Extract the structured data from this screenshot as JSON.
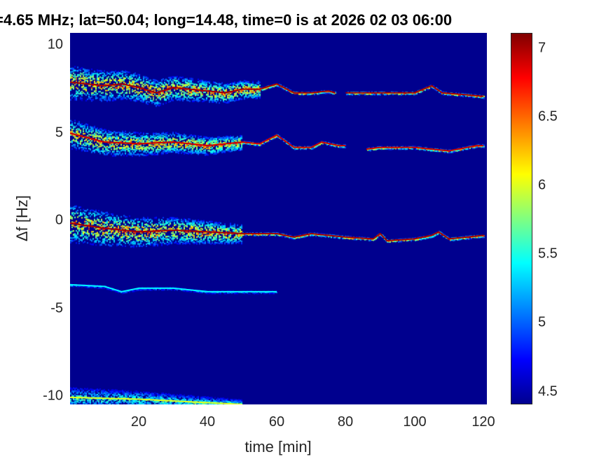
{
  "chart_data": {
    "type": "heatmap",
    "title": "=4.65 MHz;  lat=50.04; long=14.48, time=0 is at 2026 02 03 06:00",
    "xlabel": "time [min]",
    "ylabel": "Δf [Hz]",
    "xlim": [
      0,
      121
    ],
    "ylim": [
      -10.5,
      10.6
    ],
    "xticks": [
      "20",
      "40",
      "60",
      "80",
      "100",
      "120"
    ],
    "yticks": [
      "10",
      "5",
      "0",
      "-5",
      "-10"
    ],
    "colorbar": {
      "clim": [
        4.41,
        7.11
      ],
      "ticks": [
        "7",
        "6.5",
        "6",
        "5.5",
        "5",
        "4.5"
      ],
      "colormap": "jet"
    },
    "background_value": 4.45,
    "traces": [
      {
        "name": "trace-7hz",
        "peak": 7.0,
        "spread_hz": 0.8,
        "spread_until_min": 55,
        "t": [
          0,
          10,
          15,
          20,
          25,
          30,
          40,
          45,
          50,
          55,
          60,
          65,
          70,
          75,
          77,
          null,
          80,
          90,
          100,
          105,
          108,
          120
        ],
        "f": [
          7.8,
          7.6,
          7.7,
          7.5,
          7.2,
          7.5,
          7.3,
          7.2,
          7.4,
          7.4,
          7.7,
          7.2,
          7.2,
          7.3,
          7.2,
          null,
          7.2,
          7.2,
          7.2,
          7.6,
          7.2,
          7.0
        ]
      },
      {
        "name": "trace-4hz",
        "peak": 6.9,
        "spread_hz": 0.7,
        "spread_until_min": 50,
        "t": [
          0,
          10,
          20,
          30,
          40,
          50,
          55,
          60,
          65,
          70,
          73,
          78,
          80,
          null,
          86,
          90,
          100,
          110,
          118,
          120
        ],
        "f": [
          4.9,
          4.4,
          4.3,
          4.4,
          4.2,
          4.4,
          4.3,
          4.8,
          4.1,
          4.1,
          4.4,
          4.2,
          4.2,
          null,
          4.0,
          4.1,
          4.1,
          3.9,
          4.2,
          4.2
        ]
      },
      {
        "name": "trace-0hz",
        "peak": 7.0,
        "spread_hz": 0.9,
        "spread_until_min": 50,
        "t": [
          0,
          10,
          20,
          30,
          40,
          50,
          60,
          65,
          70,
          80,
          88,
          90,
          92,
          100,
          105,
          107,
          110,
          120
        ],
        "f": [
          -0.2,
          -0.5,
          -0.7,
          -0.6,
          -0.7,
          -0.8,
          -0.8,
          -1.0,
          -0.8,
          -1.0,
          -1.1,
          -0.8,
          -1.2,
          -1.1,
          -0.9,
          -0.7,
          -1.1,
          -0.9
        ]
      },
      {
        "name": "trace-minus4hz",
        "peak": 5.4,
        "spread_hz": 0.1,
        "spread_until_min": 0,
        "t": [
          0,
          10,
          15,
          20,
          30,
          40,
          50,
          60
        ],
        "f": [
          -3.7,
          -3.8,
          -4.1,
          -3.9,
          -3.9,
          -4.1,
          -4.1,
          -4.1
        ]
      },
      {
        "name": "trace-minus10hz",
        "peak": 6.0,
        "spread_hz": 0.5,
        "spread_until_min": 50,
        "t": [
          0,
          20,
          50
        ],
        "f": [
          -10.1,
          -10.2,
          -10.5
        ]
      }
    ]
  }
}
